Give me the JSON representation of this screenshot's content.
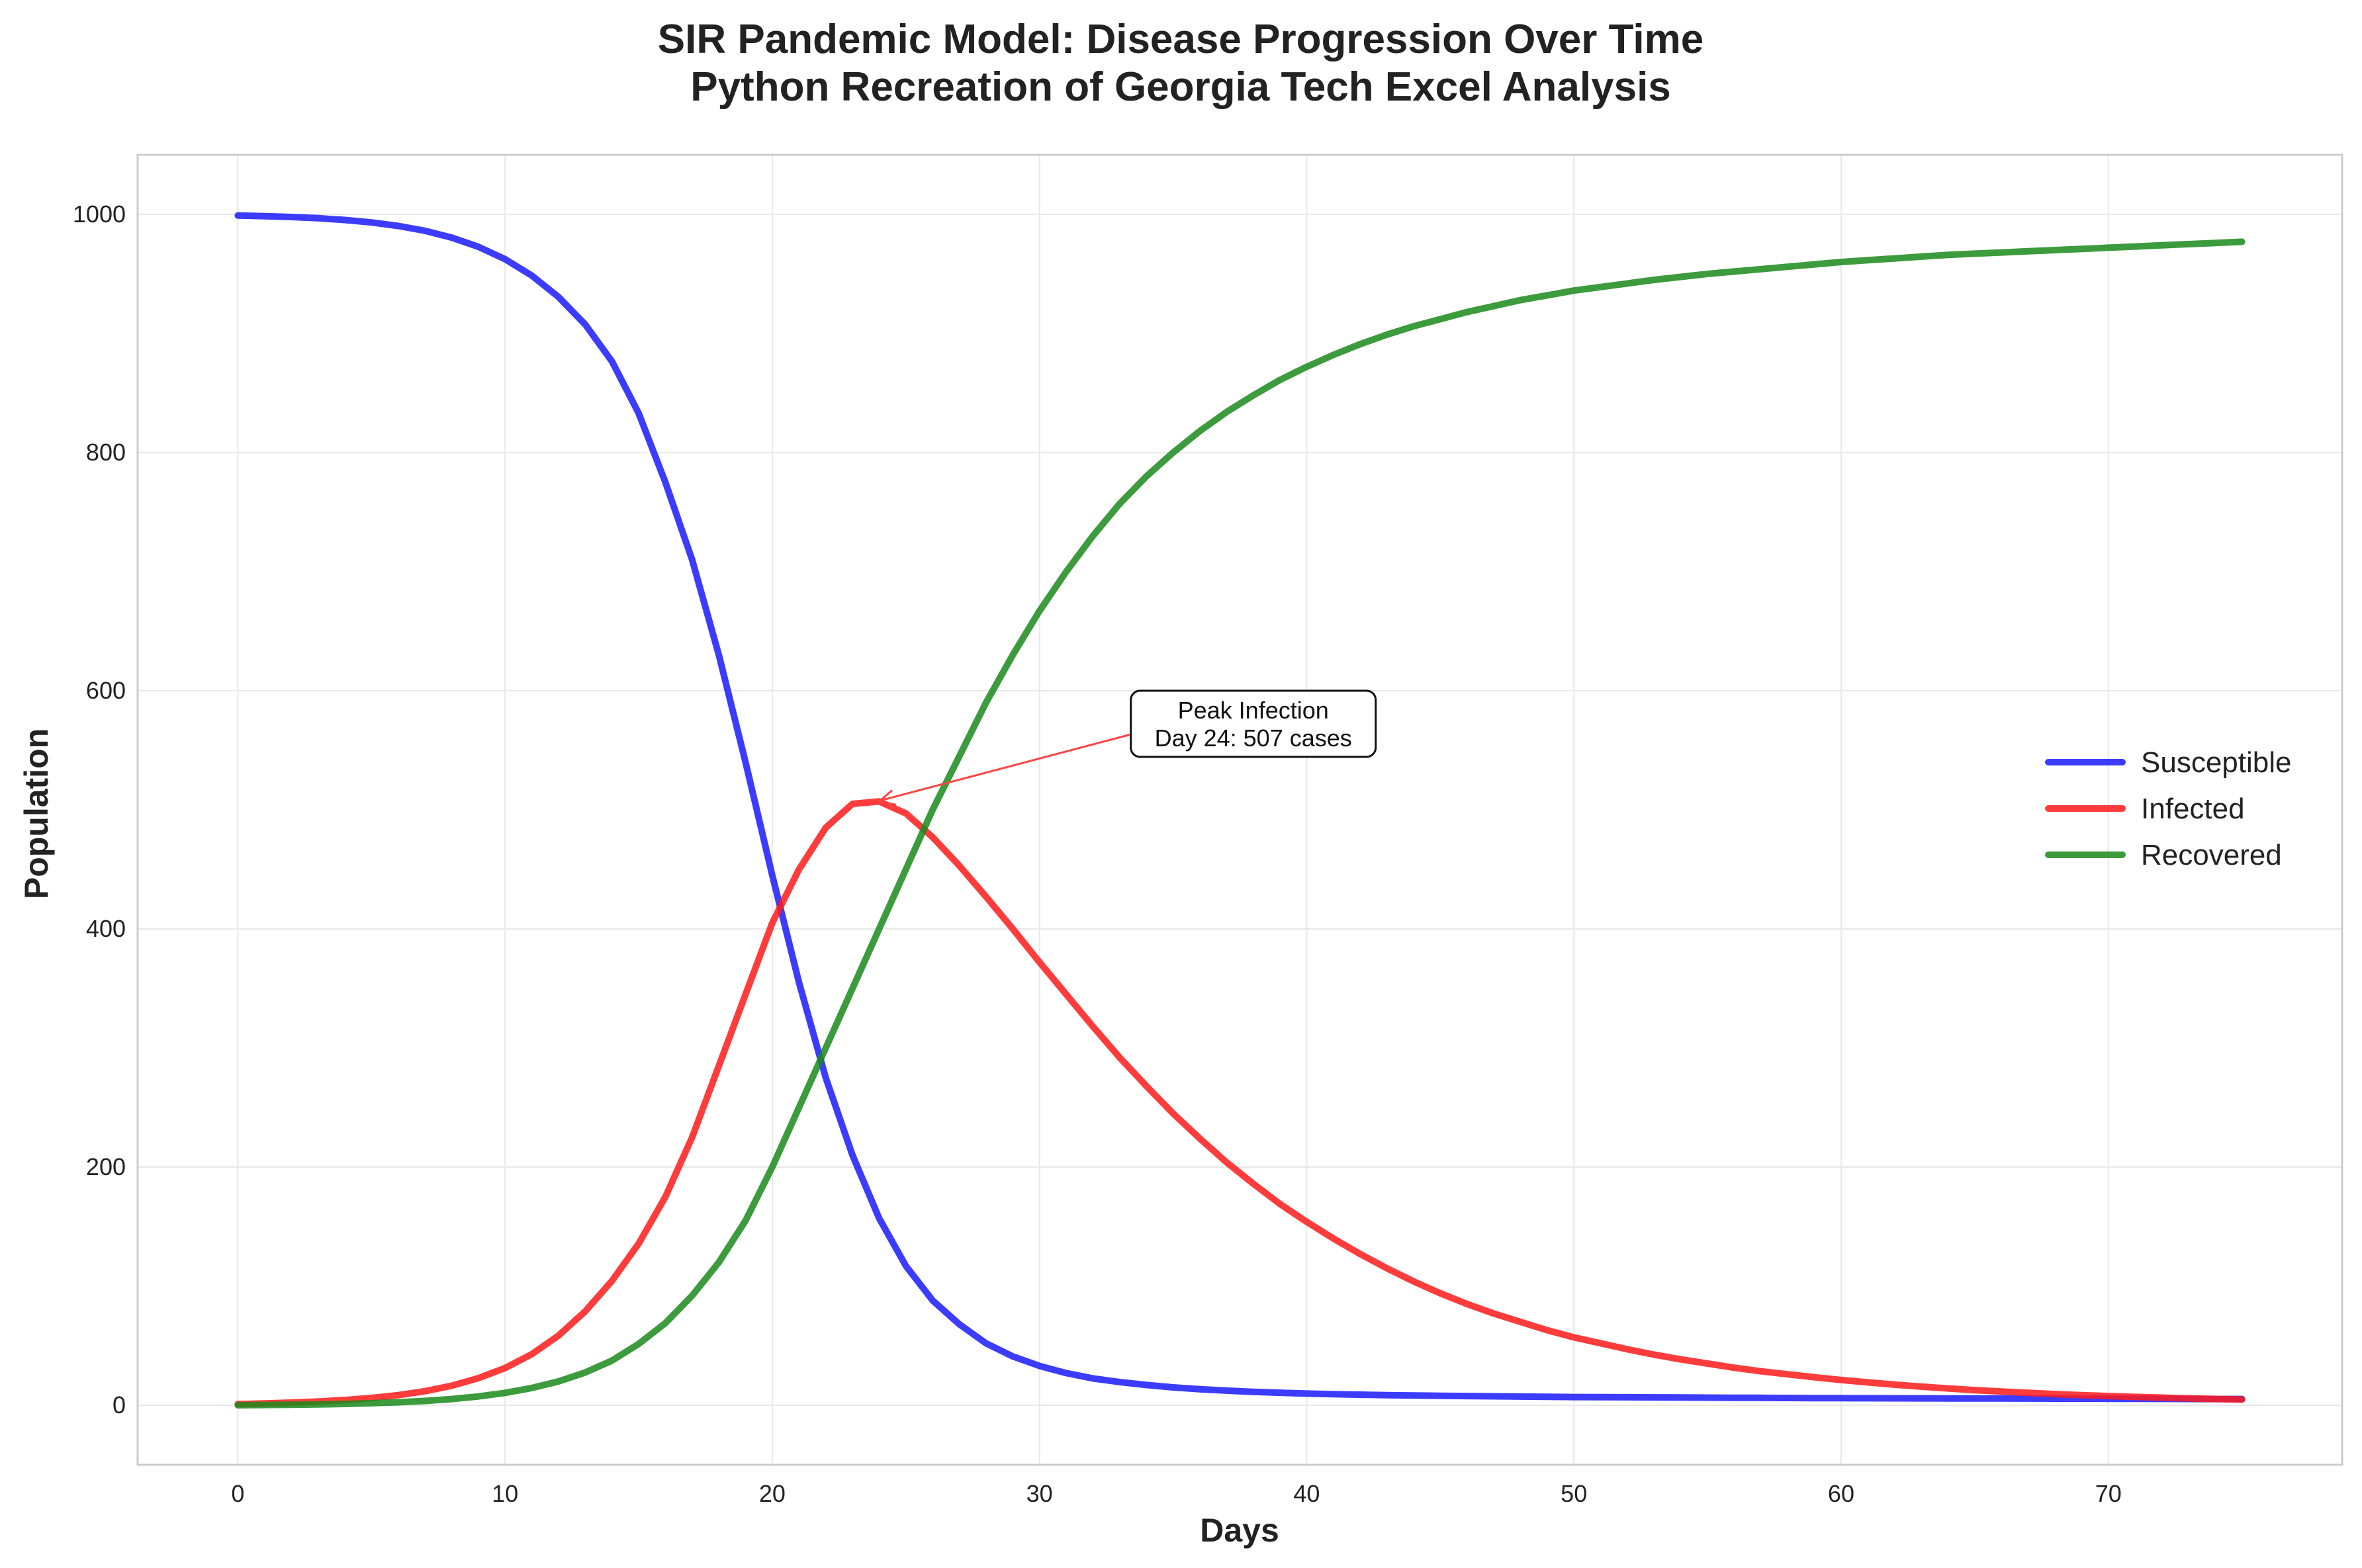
{
  "chart_data": {
    "type": "line",
    "title": "SIR Pandemic Model: Disease Progression Over Time",
    "subtitle": "Python Recreation of Georgia Tech Excel Analysis",
    "xlabel": "Days",
    "ylabel": "Population",
    "xlim": [
      -3.75,
      78.75
    ],
    "ylim": [
      -50,
      1050
    ],
    "xticks": [
      0,
      10,
      20,
      30,
      40,
      50,
      60,
      70
    ],
    "yticks": [
      0,
      200,
      400,
      600,
      800,
      1000
    ],
    "grid": true,
    "legend_position": "center-right",
    "annotation": {
      "line1": "Peak Infection",
      "line2": "Day 24: 507 cases",
      "point_x": 24,
      "point_y": 507,
      "text_x": 38,
      "text_y": 570,
      "arrow_color": "#ff4444"
    },
    "x": [
      0,
      1,
      2,
      3,
      4,
      5,
      6,
      7,
      8,
      9,
      10,
      11,
      12,
      13,
      14,
      15,
      16,
      17,
      18,
      19,
      20,
      21,
      22,
      23,
      24,
      25,
      26,
      27,
      28,
      29,
      30,
      31,
      32,
      33,
      34,
      35,
      36,
      37,
      38,
      39,
      40,
      41,
      42,
      43,
      44,
      45,
      46,
      47,
      48,
      49,
      50,
      51,
      52,
      53,
      54,
      55,
      56,
      57,
      58,
      59,
      60,
      61,
      62,
      63,
      64,
      65,
      66,
      67,
      68,
      69,
      70,
      71,
      72,
      73,
      74,
      75
    ],
    "series": [
      {
        "name": "Susceptible",
        "color": "#1a1aff",
        "values": [
          999,
          998.5,
          997.8,
          996.8,
          995.3,
          993.2,
          990.3,
          986.2,
          980.5,
          972.8,
          962.4,
          948.6,
          930.6,
          907.5,
          876.5,
          833,
          775,
          710,
          630,
          540,
          445,
          355,
          275,
          210,
          157,
          117,
          88,
          68,
          52,
          41,
          33,
          27,
          22.5,
          19.5,
          17,
          15,
          13.5,
          12.3,
          11.3,
          10.5,
          9.8,
          9.3,
          8.9,
          8.5,
          8.2,
          7.9,
          7.7,
          7.5,
          7.3,
          7.1,
          6.9,
          6.8,
          6.7,
          6.6,
          6.5,
          6.4,
          6.3,
          6.2,
          6.1,
          6.0,
          5.95,
          5.9,
          5.85,
          5.8,
          5.75,
          5.7,
          5.65,
          5.6,
          5.55,
          5.5,
          5.45,
          5.4,
          5.35,
          5.3,
          5.25,
          5.2
        ]
      },
      {
        "name": "Infected",
        "color": "#ff1a1a",
        "values": [
          1,
          1.5,
          2.2,
          3.1,
          4.4,
          6.1,
          8.5,
          11.8,
          16.4,
          22.7,
          31.3,
          42.9,
          58.5,
          78.9,
          104.5,
          135.7,
          175,
          225,
          285,
          345,
          405,
          450,
          485,
          505,
          507,
          497,
          477,
          453,
          427,
          400,
          372,
          345,
          318,
          292,
          268,
          245,
          224,
          204,
          186,
          169,
          154,
          140,
          127,
          115,
          104,
          94,
          85,
          77,
          70,
          63,
          57,
          52,
          47,
          42.5,
          38.5,
          35,
          31.5,
          28.5,
          26,
          23.5,
          21.2,
          19.2,
          17.3,
          15.6,
          14.1,
          12.7,
          11.5,
          10.4,
          9.4,
          8.5,
          7.7,
          7,
          6.4,
          5.8,
          5.3,
          4.8
        ]
      },
      {
        "name": "Recovered",
        "color": "#1a8a1a",
        "values": [
          0,
          0.2,
          0.4,
          0.7,
          1.1,
          1.7,
          2.5,
          3.6,
          5.2,
          7.4,
          10.4,
          14.5,
          20,
          27.5,
          37.5,
          51.5,
          69,
          92,
          120,
          155,
          200,
          250,
          300,
          350,
          400,
          450,
          500,
          545,
          590,
          630,
          667,
          700,
          730,
          757,
          780,
          800,
          818,
          834,
          848,
          861,
          872,
          882,
          891,
          899,
          906,
          912,
          918,
          923,
          928,
          932,
          936,
          939,
          942,
          945,
          947.5,
          950,
          952,
          954,
          956,
          958,
          960,
          961.5,
          963,
          964.5,
          966,
          967,
          968,
          969,
          970,
          971,
          972,
          973,
          974,
          975,
          976,
          977
        ]
      }
    ]
  }
}
